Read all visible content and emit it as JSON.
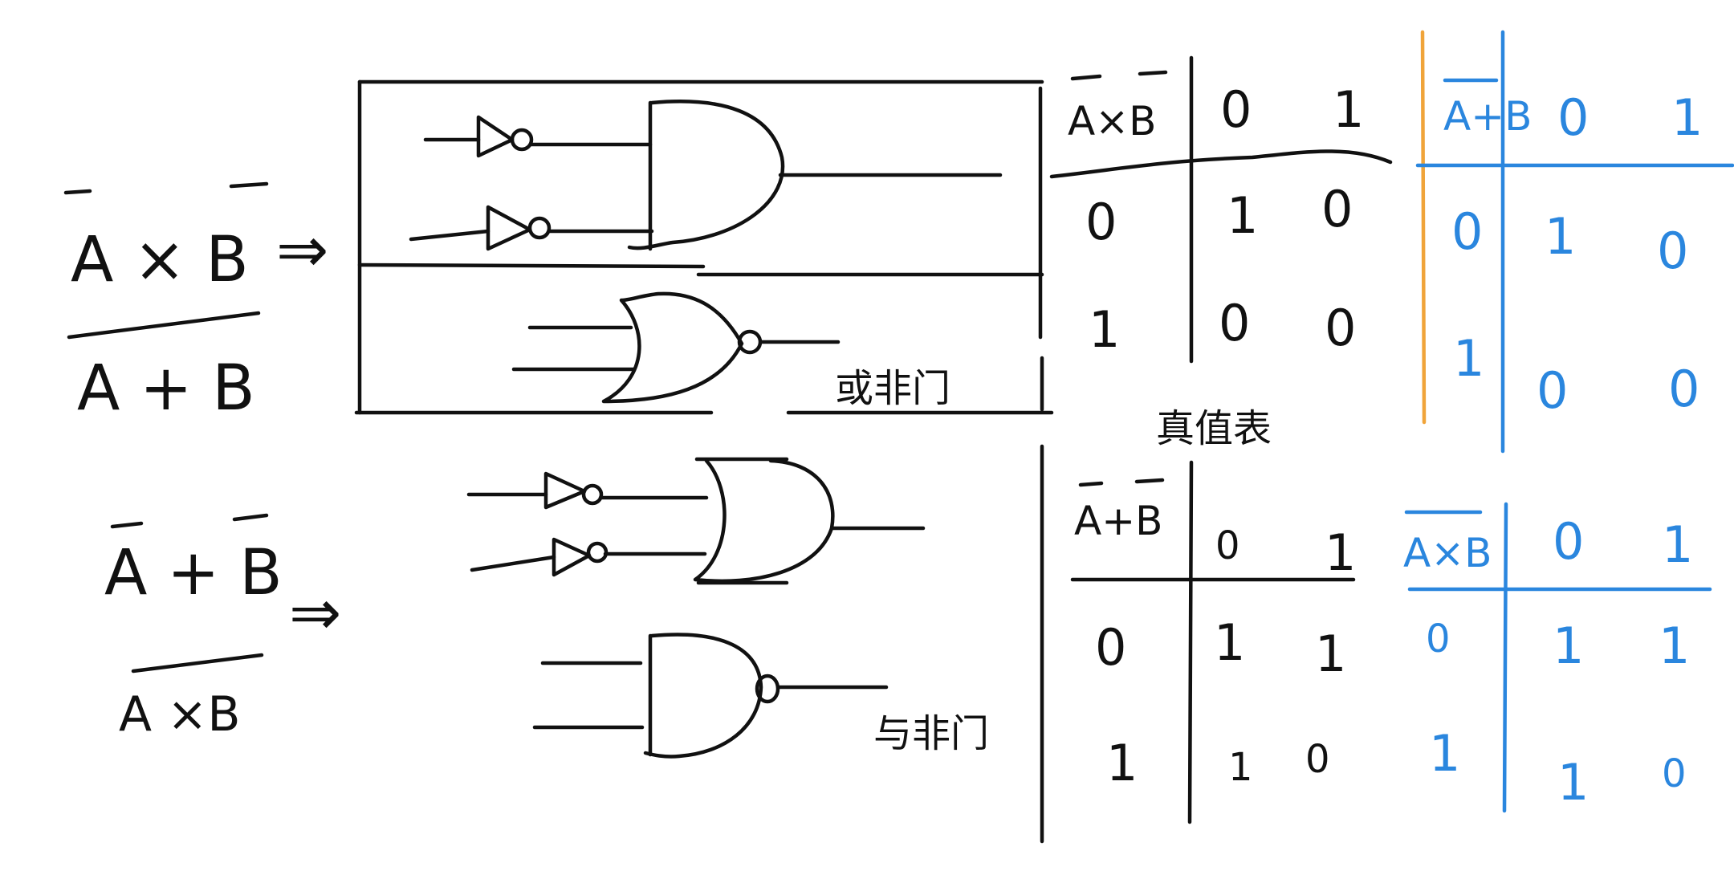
{
  "colors": {
    "ink": "#111111",
    "blue": "#2a86de",
    "orange": "#f0a43a",
    "background": "#ffffff"
  },
  "expressions": {
    "nor_top": "A × B",
    "nor_bottom": "A + B",
    "nand_top": "A + B",
    "nand_bottom": "A ×B",
    "arrow": "⇒"
  },
  "gate_labels": {
    "nor": "或非门",
    "nand": "与非门"
  },
  "truth_table_caption": "真值表",
  "table_nor_black": {
    "header": "A×B",
    "cols": [
      "0",
      "1"
    ],
    "rows": [
      {
        "label": "0",
        "cells": [
          "1",
          "0"
        ]
      },
      {
        "label": "1",
        "cells": [
          "0",
          "0"
        ]
      }
    ]
  },
  "table_nor_blue": {
    "header": "A+B",
    "cols": [
      "0",
      "1"
    ],
    "rows": [
      {
        "label": "0",
        "cells": [
          "1",
          "0"
        ]
      },
      {
        "label": "1",
        "cells": [
          "0",
          "0"
        ]
      }
    ]
  },
  "table_nand_black": {
    "header": "A+B",
    "cols": [
      "0",
      "1"
    ],
    "rows": [
      {
        "label": "0",
        "cells": [
          "1",
          "1"
        ]
      },
      {
        "label": "1",
        "cells": [
          "1",
          "0"
        ]
      }
    ]
  },
  "table_nand_blue": {
    "header": "A×B",
    "cols": [
      "0",
      "1"
    ],
    "rows": [
      {
        "label": "0",
        "cells": [
          "1",
          "1"
        ]
      },
      {
        "label": "1",
        "cells": [
          "1",
          "0"
        ]
      }
    ]
  },
  "icons": [
    "not-gate-icon",
    "and-gate-icon",
    "or-gate-icon",
    "nor-gate-icon",
    "nand-gate-icon"
  ]
}
